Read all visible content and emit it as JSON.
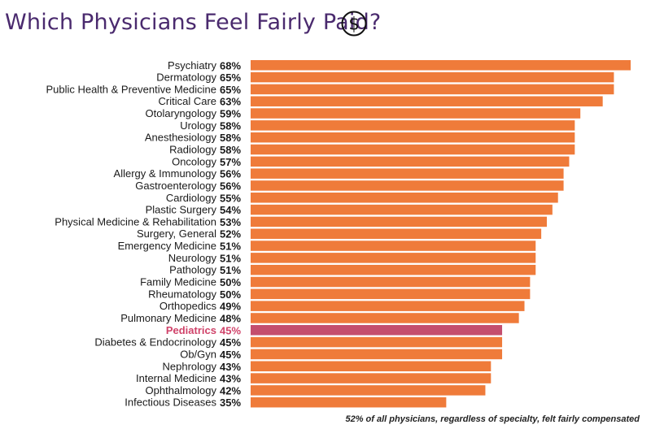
{
  "title": "Which Physicians Feel Fairly Paid?",
  "icon": "dollar-icon",
  "footnote": "52% of all physicians, regardless of specialty, felt fairly compensated",
  "colors": {
    "bar": "#ef7b3a",
    "highlight_bar": "#c44e6e",
    "highlight_label": "#d0436a",
    "title": "#4a2a6e",
    "label": "#1a1a1a"
  },
  "chart_data": {
    "type": "bar",
    "orientation": "horizontal",
    "title": "Which Physicians Feel Fairly Paid?",
    "xlim": [
      0,
      68
    ],
    "grid": false,
    "highlight": "Pediatrics",
    "value_format": "{v}%",
    "categories": [
      "Psychiatry",
      "Dermatology",
      "Public Health & Preventive Medicine",
      "Critical Care",
      "Otolaryngology",
      "Urology",
      "Anesthesiology",
      "Radiology",
      "Oncology",
      "Allergy & Immunology",
      "Gastroenterology",
      "Cardiology",
      "Plastic Surgery",
      "Physical Medicine & Rehabilitation",
      "Surgery, General",
      "Emergency Medicine",
      "Neurology",
      "Pathology",
      "Family Medicine",
      "Rheumatology",
      "Orthopedics",
      "Pulmonary Medicine",
      "Pediatrics",
      "Diabetes & Endocrinology",
      "Ob/Gyn",
      "Nephrology",
      "Internal Medicine",
      "Ophthalmology",
      "Infectious Diseases"
    ],
    "values": [
      68,
      65,
      65,
      63,
      59,
      58,
      58,
      58,
      57,
      56,
      56,
      55,
      54,
      53,
      52,
      51,
      51,
      51,
      50,
      50,
      49,
      48,
      45,
      45,
      45,
      43,
      43,
      42,
      35
    ]
  }
}
